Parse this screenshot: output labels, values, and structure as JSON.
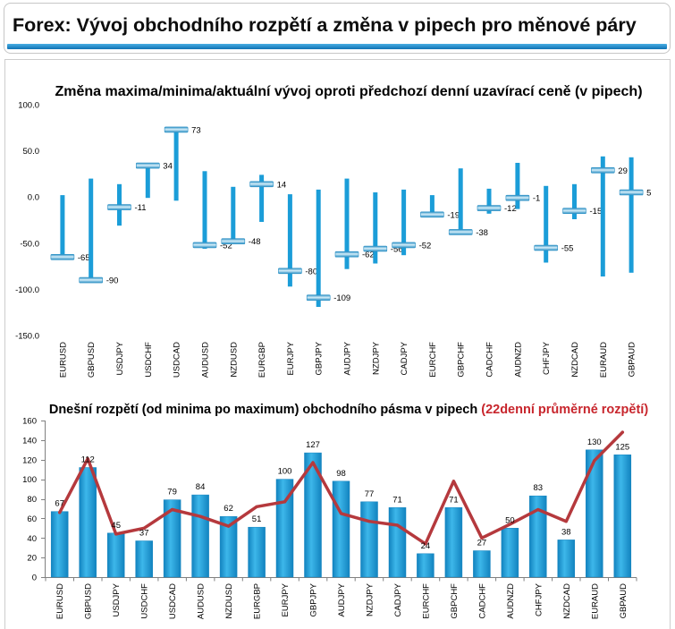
{
  "header": {
    "title": "Forex: Vývoj obchodního rozpětí a změna v pipech pro měnové páry"
  },
  "colors": {
    "header_stripe_light": "#4aaee3",
    "header_stripe_dark": "#0f72b4",
    "range_bar": "#1b9dd8",
    "marker_light": "#d6eef9",
    "marker_dark": "#2a8fc4",
    "bar_light": "#3db7ea",
    "bar_dark": "#1283bf",
    "avg_line": "#b5393d",
    "title_note": "#c8262d",
    "axis": "#808080"
  },
  "chart_data": [
    {
      "type": "bar",
      "title": "Změna maxima/minima/aktuální vývoj oproti předchozí denní uzavírací ceně (v pipech)",
      "categories": [
        "EURUSD",
        "GBPUSD",
        "USDJPY",
        "USDCHF",
        "USDCAD",
        "AUDUSD",
        "NZDUSD",
        "EURGBP",
        "EURJPY",
        "GBPJPY",
        "AUDJPY",
        "NZDJPY",
        "CADJPY",
        "EURCHF",
        "GBPCHF",
        "CADCHF",
        "AUDNZD",
        "CHFJPY",
        "NZDCAD",
        "EURAUD",
        "GBPAUD"
      ],
      "high": [
        2,
        20,
        14,
        36,
        75,
        28,
        11,
        24,
        3,
        8,
        20,
        5,
        8,
        2,
        31,
        9,
        37,
        12,
        14,
        44,
        43
      ],
      "low": [
        -65,
        -92,
        -31,
        -1,
        -4,
        -56,
        -51,
        -27,
        -97,
        -119,
        -78,
        -72,
        -63,
        -22,
        -40,
        -18,
        -13,
        -71,
        -24,
        -86,
        -82
      ],
      "current": [
        -65,
        -90,
        -11,
        34,
        73,
        -52,
        -48,
        14,
        -80,
        -109,
        -62,
        -56,
        -52,
        -19,
        -38,
        -12,
        -1,
        -55,
        -15,
        29,
        5
      ],
      "ylim": [
        -150,
        100
      ],
      "yticks": [
        100,
        50,
        0,
        -50,
        -100,
        -150
      ],
      "ytick_labels": [
        "100.0",
        "50.0",
        "0.0",
        "-50.0",
        "-100.0",
        "-150.0"
      ],
      "grid": false
    },
    {
      "type": "bar",
      "title": "Dnešní rozpětí (od minima po maximum) obchodního pásma v pipech",
      "title_note": "(22denní průměrné rozpětí)",
      "categories": [
        "EURUSD",
        "GBPUSD",
        "USDJPY",
        "USDCHF",
        "USDCAD",
        "AUDUSD",
        "NZDUSD",
        "EURGBP",
        "EURJPY",
        "GBPJPY",
        "AUDJPY",
        "NZDJPY",
        "CADJPY",
        "EURCHF",
        "GBPCHF",
        "CADCHF",
        "AUDNZD",
        "CHFJPY",
        "NZDCAD",
        "EURAUD",
        "GBPAUD"
      ],
      "values": [
        67,
        112,
        45,
        37,
        79,
        84,
        62,
        51,
        100,
        127,
        98,
        77,
        71,
        24,
        71,
        27,
        50,
        83,
        38,
        130,
        125
      ],
      "line_values": [
        66,
        121,
        44,
        50,
        69,
        62,
        52,
        72,
        77,
        117,
        65,
        57,
        53,
        34,
        98,
        40,
        54,
        69,
        57,
        119,
        148
      ],
      "ylim": [
        0,
        160
      ],
      "yticks": [
        160,
        140,
        120,
        100,
        80,
        60,
        40,
        20,
        0
      ],
      "grid": false
    }
  ]
}
